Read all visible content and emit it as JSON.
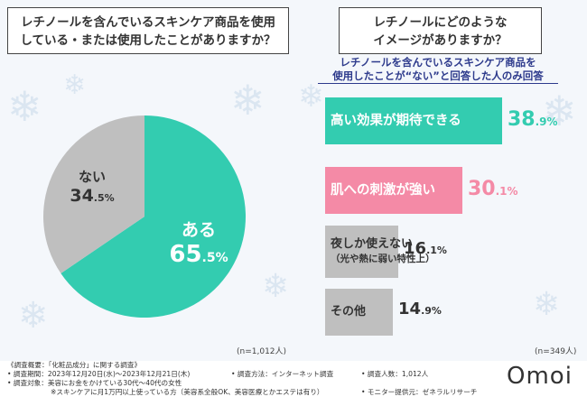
{
  "left_question": "レチノールを含んでいるスキンケア商品を使用\nしている・または使用したことがありますか？",
  "right_question": "レチノールにどのような\nイメージがありますか？",
  "right_subtitle": "レチノールを含んでいるスキンケア商品を\n使用したことが“ない”と回答した人のみ回答",
  "chart_data": [
    {
      "type": "pie",
      "slices": [
        {
          "label": "ある",
          "value": 65.5,
          "value_main": "65",
          "value_dec": ".5%",
          "color": "#33ccb0"
        },
        {
          "label": "ない",
          "value": 34.5,
          "value_main": "34",
          "value_dec": ".5%",
          "color": "#bfbfbf"
        }
      ],
      "n": "(n=1,012人)"
    },
    {
      "type": "bar",
      "orientation": "horizontal",
      "categories": [
        "高い効果が期待できる",
        "肌への刺激が強い",
        "夜しか使えない",
        "その他"
      ],
      "category_notes": [
        "",
        "",
        "（光や熱に弱い特性上）",
        ""
      ],
      "values": [
        38.9,
        30.1,
        16.1,
        14.9
      ],
      "value_main": [
        "38",
        "30",
        "16",
        "14"
      ],
      "value_dec": [
        ".9%",
        ".1%",
        ".1%",
        ".9%"
      ],
      "colors": [
        "#33ccb0",
        "#f48aa6",
        "#bfbfbf",
        "#bfbfbf"
      ],
      "text_colors": [
        "#ffffff",
        "#ffffff",
        "#333333",
        "#333333"
      ],
      "value_colors": [
        "#33ccb0",
        "#f48aa6",
        "#333333",
        "#333333"
      ],
      "xlim": [
        0,
        38.9
      ],
      "n": "(n=349人)"
    }
  ],
  "footer": {
    "line1": "《調査概要：「化粧品成分」に関する調査》",
    "line2a": "• 調査期間：2023年12月20日(水)～2023年12月21日(木)",
    "line2b": "• 調査方法：インターネット調査",
    "line2c": "• 調査人数：1,012人",
    "line3": "• 調査対象：美容にお金をかけている30代～40代の女性",
    "line4a": "※スキンケアに月1万円以上使っている方（美容系全般OK、美容医療とかエステは有り）",
    "line4b": "• モニター提供元：ゼネラルリサーチ"
  },
  "logo": "Omoi"
}
